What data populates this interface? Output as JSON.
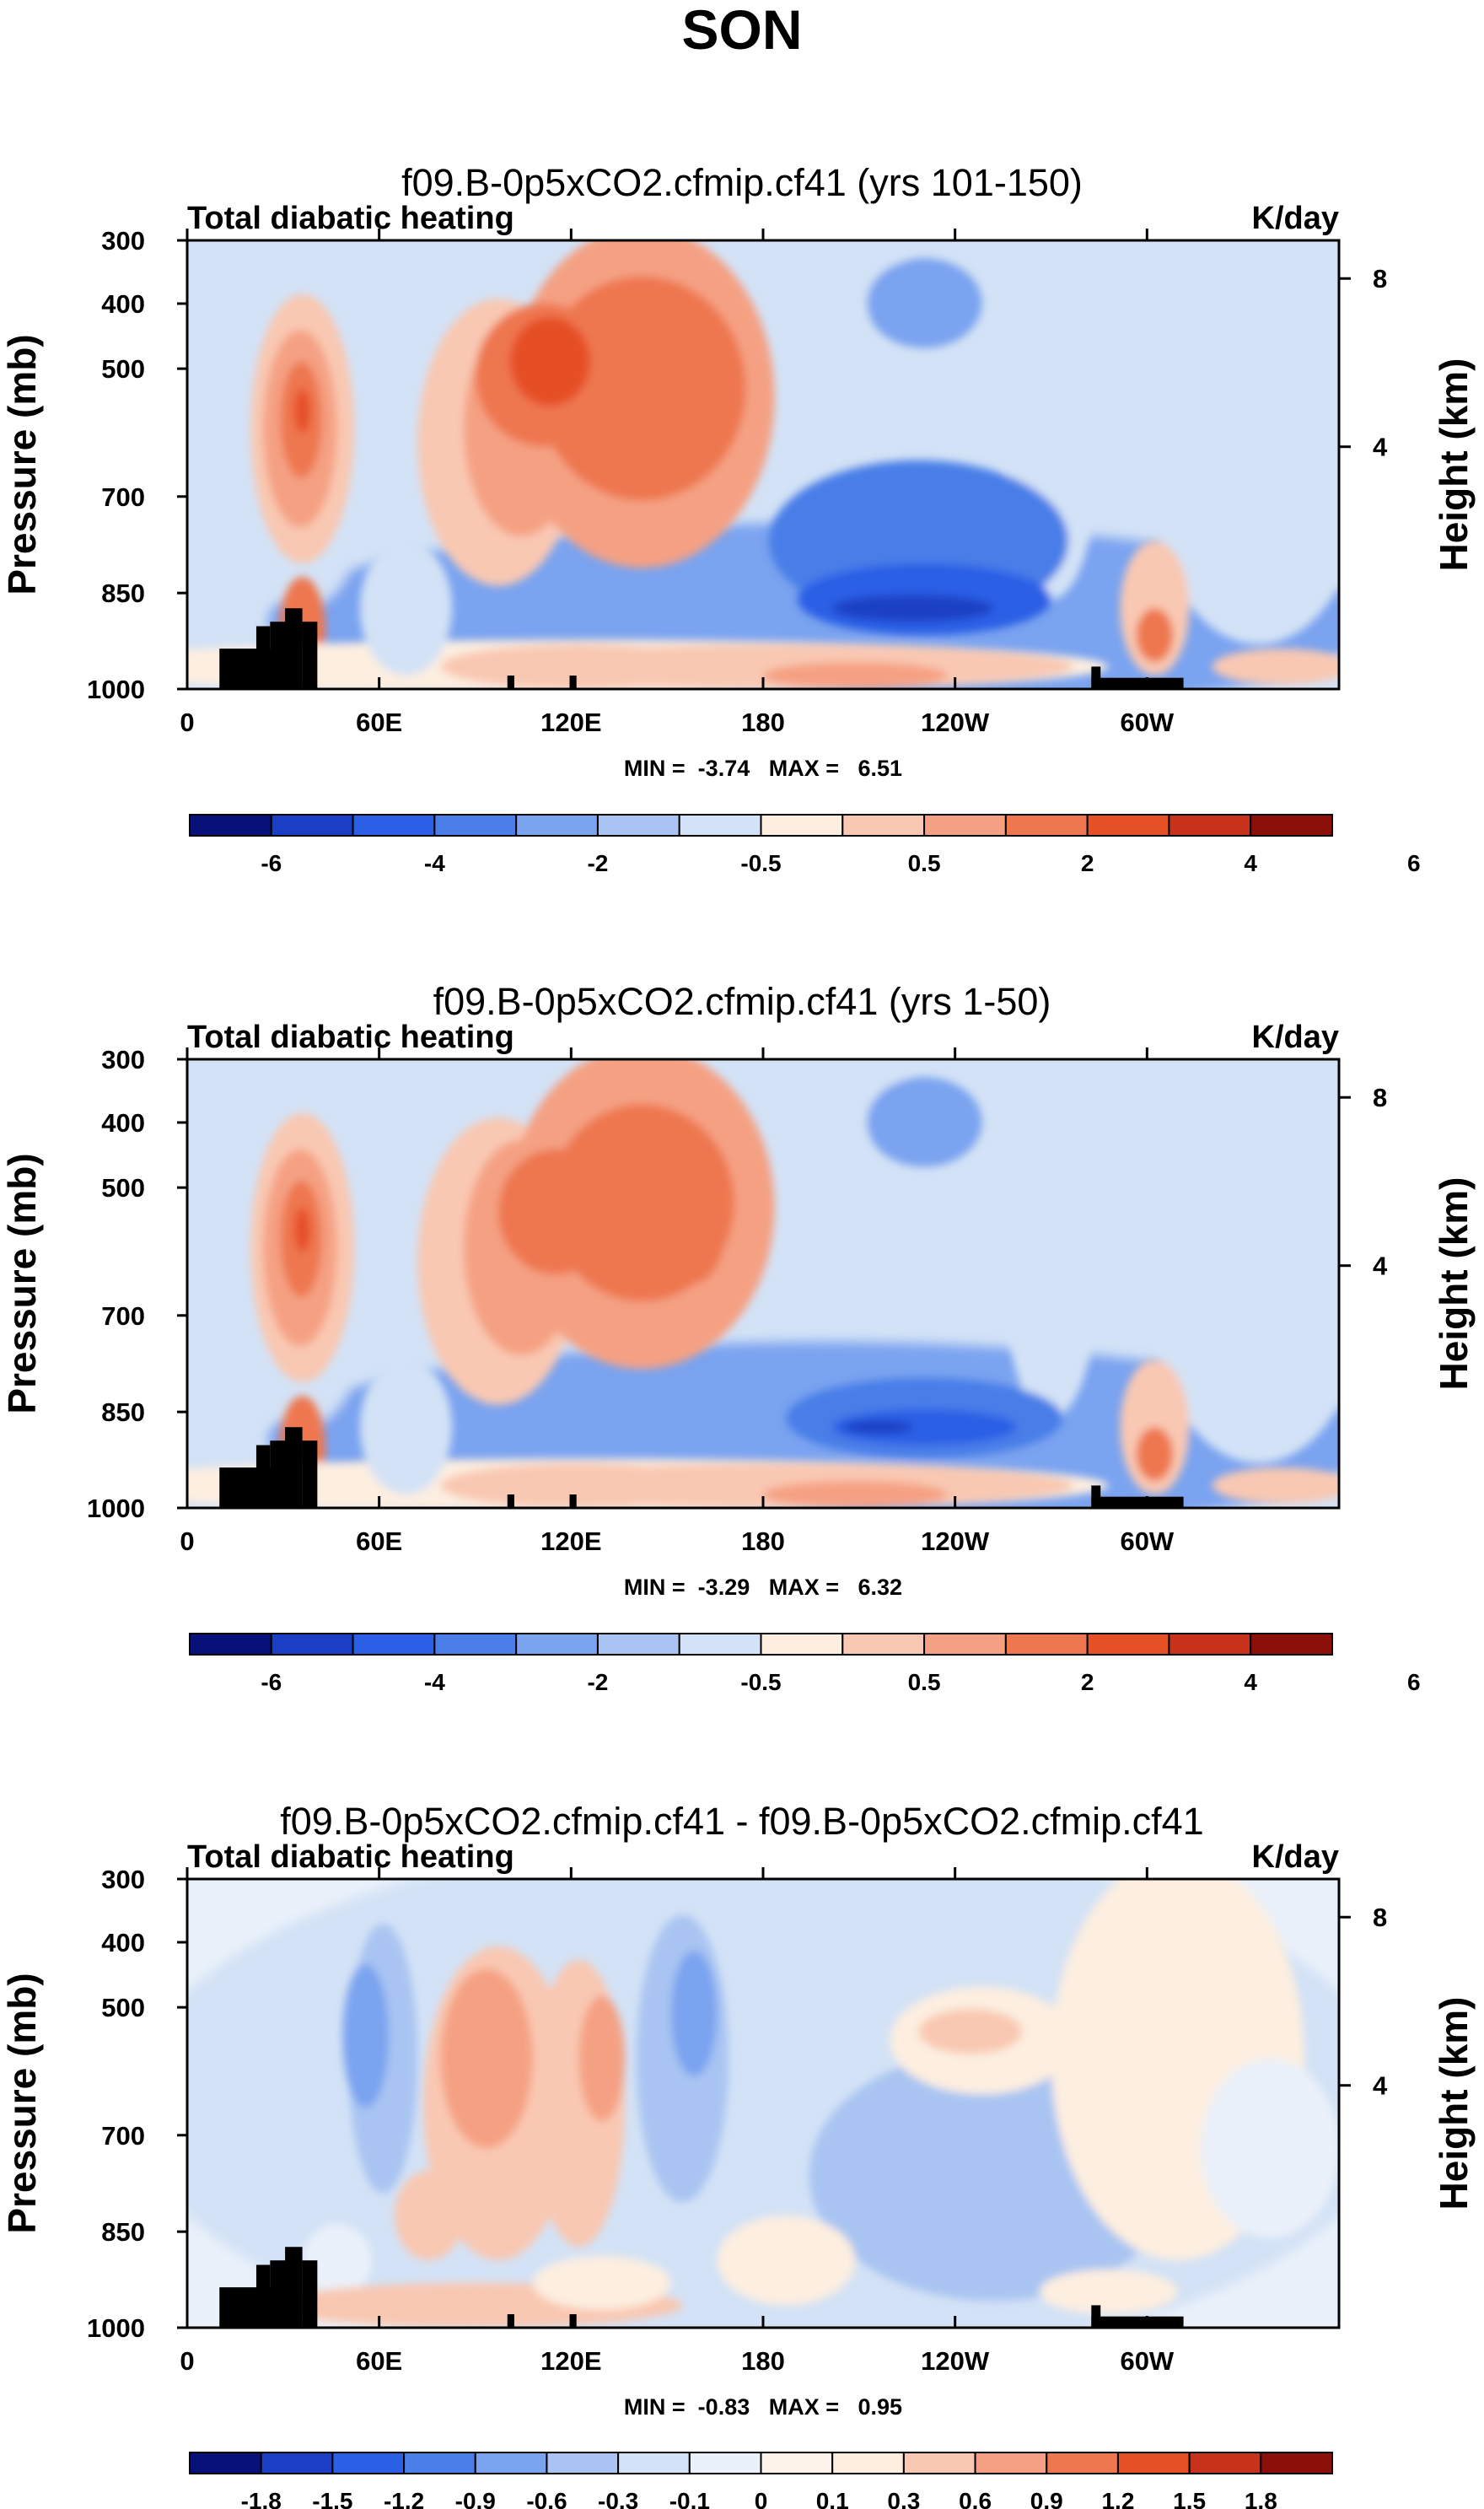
{
  "figure": {
    "title": "SON",
    "variable": "Total diabatic heating",
    "units": "K/day",
    "y_label": "Pressure (mb)",
    "y2_label": "Height (km)"
  },
  "colors": {
    "abs_palette": [
      "#08107a",
      "#1a3fc4",
      "#2a5fe6",
      "#4a7ee8",
      "#7aa3f0",
      "#a9c4f2",
      "#d3e2f6",
      "#fdeee0",
      "#f9c8b2",
      "#f5a083",
      "#ee7750",
      "#e65025",
      "#c7321a",
      "#8c0f0a"
    ],
    "diff_palette": [
      "#08107a",
      "#1a3fc4",
      "#2a5fe6",
      "#4a7ee8",
      "#7aa3f0",
      "#a9c4f2",
      "#d3e2f6",
      "#eaf1fa",
      "#fdf3ea",
      "#fdeee0",
      "#f9c8b2",
      "#f5a083",
      "#ee7750",
      "#e65025",
      "#c7321a",
      "#8c0f0a"
    ],
    "topography": "#000000"
  },
  "chart_data": [
    {
      "type": "heatmap",
      "panel": "top",
      "title": "f09.B-0p5xCO2.cfmip.cf41 (yrs 101-150)",
      "left_label": "Total diabatic heating",
      "right_label": "K/day",
      "xlabel": "",
      "ylabel": "Pressure (mb)",
      "y2label": "Height (km)",
      "x_ticks": [
        "0",
        "60E",
        "120E",
        "180",
        "120W",
        "60W"
      ],
      "y_ticks": [
        "300",
        "400",
        "500",
        "700",
        "850",
        "1000"
      ],
      "y2_ticks": [
        "8",
        "4"
      ],
      "stats_text": "MIN =  -3.74   MAX =   6.51",
      "min": -3.74,
      "max": 6.51,
      "colorbar_levels": [
        -6,
        -5,
        -4,
        -3,
        -2,
        -1,
        -0.5,
        0,
        0.5,
        1,
        2,
        3,
        4,
        5,
        6
      ],
      "colorbar_labels": [
        "-6",
        "-4",
        "-2",
        "-0.5",
        "0.5",
        "2",
        "4",
        "6"
      ]
    },
    {
      "type": "heatmap",
      "panel": "middle",
      "title": "f09.B-0p5xCO2.cfmip.cf41 (yrs 1-50)",
      "left_label": "Total diabatic heating",
      "right_label": "K/day",
      "xlabel": "",
      "ylabel": "Pressure (mb)",
      "y2label": "Height (km)",
      "x_ticks": [
        "0",
        "60E",
        "120E",
        "180",
        "120W",
        "60W"
      ],
      "y_ticks": [
        "300",
        "400",
        "500",
        "700",
        "850",
        "1000"
      ],
      "y2_ticks": [
        "8",
        "4"
      ],
      "stats_text": "MIN =  -3.29   MAX =   6.32",
      "min": -3.29,
      "max": 6.32,
      "colorbar_levels": [
        -6,
        -5,
        -4,
        -3,
        -2,
        -1,
        -0.5,
        0,
        0.5,
        1,
        2,
        3,
        4,
        5,
        6
      ],
      "colorbar_labels": [
        "-6",
        "-4",
        "-2",
        "-0.5",
        "0.5",
        "2",
        "4",
        "6"
      ]
    },
    {
      "type": "heatmap",
      "panel": "difference",
      "title": "f09.B-0p5xCO2.cfmip.cf41 - f09.B-0p5xCO2.cfmip.cf41",
      "left_label": "Total diabatic heating",
      "right_label": "K/day",
      "xlabel": "",
      "ylabel": "Pressure (mb)",
      "y2label": "Height (km)",
      "x_ticks": [
        "0",
        "60E",
        "120E",
        "180",
        "120W",
        "60W"
      ],
      "y_ticks": [
        "300",
        "400",
        "500",
        "700",
        "850",
        "1000"
      ],
      "y2_ticks": [
        "8",
        "4"
      ],
      "stats_text": "MIN =  -0.83   MAX =   0.95",
      "min": -0.83,
      "max": 0.95,
      "colorbar_levels": [
        -1.8,
        -1.5,
        -1.2,
        -0.9,
        -0.6,
        -0.3,
        -0.1,
        0,
        0.1,
        0.3,
        0.6,
        0.9,
        1.2,
        1.5,
        1.8
      ],
      "colorbar_labels": [
        "-1.8",
        "-1.5",
        "-1.2",
        "-0.9",
        "-0.6",
        "-0.3",
        "-0.1",
        "0",
        "0.1",
        "0.3",
        "0.6",
        "0.9",
        "1.2",
        "1.5",
        "1.8"
      ]
    }
  ]
}
